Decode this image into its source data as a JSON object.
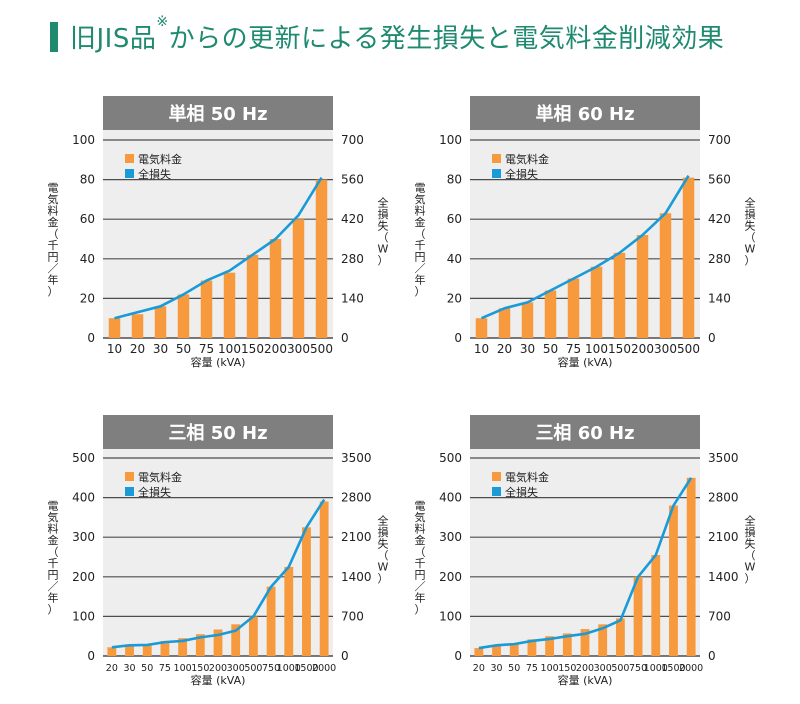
{
  "page": {
    "title_main": "旧JIS品",
    "title_mark": "※",
    "title_rest": "からの更新による発生損失と電気料金削減効果"
  },
  "colors": {
    "accent": "#1f8a70",
    "bar": "#f79a3e",
    "line": "#1a9ad6",
    "header_bg": "#7f7f7f",
    "plot_bg": "#eeeeee",
    "grid": "#4d4d4d"
  },
  "legend": {
    "bar_label": "電気料金",
    "line_label": "全損失"
  },
  "chart_data": [
    {
      "type": "bar",
      "title": "単相 50 Hz",
      "categories": [
        "10",
        "20",
        "30",
        "50",
        "75",
        "100",
        "150",
        "200",
        "300",
        "500"
      ],
      "series": [
        {
          "name": "電気料金",
          "axis": "left",
          "values": [
            10,
            12,
            16,
            22,
            29,
            33,
            42,
            50,
            60,
            80
          ]
        },
        {
          "name": "全損失",
          "type": "line",
          "axis": "right",
          "values": [
            70,
            91,
            112,
            154,
            203,
            238,
            294,
            350,
            434,
            567
          ]
        }
      ],
      "ylim": [
        0,
        100
      ],
      "y2lim": [
        0,
        700
      ],
      "yticks": [
        "0",
        "20",
        "40",
        "60",
        "80",
        "100"
      ],
      "y2ticks": [
        "0",
        "140",
        "280",
        "420",
        "560",
        "700"
      ],
      "xlabel": "容量 (kVA)",
      "ylabel": "電気料金（千円／年）",
      "y2label": "全損失（W）"
    },
    {
      "type": "bar",
      "title": "単相 60 Hz",
      "categories": [
        "10",
        "20",
        "30",
        "50",
        "75",
        "100",
        "150",
        "200",
        "300",
        "500"
      ],
      "series": [
        {
          "name": "電気料金",
          "axis": "left",
          "values": [
            10,
            15,
            18,
            24,
            30,
            36,
            43,
            52,
            63,
            81
          ]
        },
        {
          "name": "全損失",
          "type": "line",
          "axis": "right",
          "values": [
            70,
            105,
            126,
            168,
            210,
            252,
            301,
            364,
            441,
            574
          ]
        }
      ],
      "ylim": [
        0,
        100
      ],
      "y2lim": [
        0,
        700
      ],
      "yticks": [
        "0",
        "20",
        "40",
        "60",
        "80",
        "100"
      ],
      "y2ticks": [
        "0",
        "140",
        "280",
        "420",
        "560",
        "700"
      ],
      "xlabel": "容量 (kVA)",
      "ylabel": "電気料金（千円／年）",
      "y2label": "全損失（W）"
    },
    {
      "type": "bar",
      "title": "三相 50 Hz",
      "categories": [
        "20",
        "30",
        "50",
        "75",
        "100",
        "150",
        "200",
        "300",
        "500",
        "750",
        "1000",
        "1500",
        "2000"
      ],
      "series": [
        {
          "name": "電気料金",
          "axis": "left",
          "values": [
            22,
            27,
            30,
            38,
            45,
            55,
            67,
            80,
            100,
            175,
            225,
            325,
            390
          ]
        },
        {
          "name": "全損失",
          "type": "line",
          "axis": "right",
          "values": [
            154,
            189,
            196,
            245,
            266,
            329,
            371,
            448,
            700,
            1225,
            1575,
            2275,
            2765
          ]
        }
      ],
      "ylim": [
        0,
        500
      ],
      "y2lim": [
        0,
        3500
      ],
      "yticks": [
        "0",
        "100",
        "200",
        "300",
        "400",
        "500"
      ],
      "y2ticks": [
        "0",
        "700",
        "1400",
        "2100",
        "2800",
        "3500"
      ],
      "xlabel": "容量 (kVA)",
      "ylabel": "電気料金（千円／年）",
      "y2label": "全損失（W）"
    },
    {
      "type": "bar",
      "title": "三相 60 Hz",
      "categories": [
        "20",
        "30",
        "50",
        "75",
        "100",
        "150",
        "200",
        "300",
        "500",
        "750",
        "1000",
        "1500",
        "2000"
      ],
      "series": [
        {
          "name": "電気料金",
          "axis": "left",
          "values": [
            20,
            28,
            32,
            42,
            50,
            57,
            68,
            80,
            95,
            200,
            255,
            380,
            450
          ]
        },
        {
          "name": "全損失",
          "type": "line",
          "axis": "right",
          "values": [
            140,
            189,
            210,
            266,
            301,
            350,
            392,
            490,
            630,
            1400,
            1785,
            2660,
            3150
          ]
        }
      ],
      "ylim": [
        0,
        500
      ],
      "y2lim": [
        0,
        3500
      ],
      "yticks": [
        "0",
        "100",
        "200",
        "300",
        "400",
        "500"
      ],
      "y2ticks": [
        "0",
        "700",
        "1400",
        "2100",
        "2800",
        "3500"
      ],
      "xlabel": "容量 (kVA)",
      "ylabel": "電気料金（千円／年）",
      "y2label": "全損失（W）"
    }
  ]
}
